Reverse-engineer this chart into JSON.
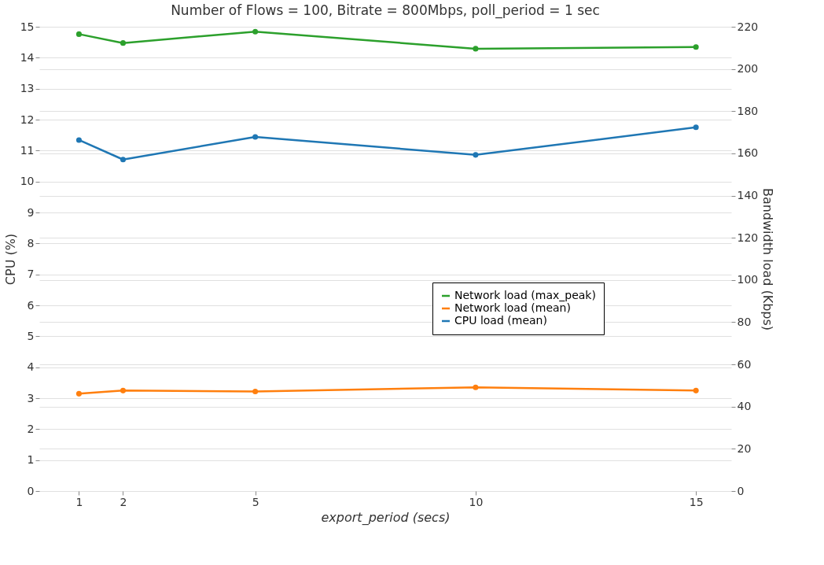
{
  "chart_data": {
    "type": "line",
    "title": "Number of Flows = 100, Bitrate = 800Mbps, poll_period = 1 sec",
    "xlabel": "export_period (secs)",
    "ylabel": "CPU (%)",
    "y2label": "Bandwidth load (Kbps)",
    "x": [
      1,
      2,
      5,
      10,
      15
    ],
    "xlim": [
      0.1,
      15.8
    ],
    "xticks": [
      1,
      2,
      5,
      10,
      15
    ],
    "ylim": [
      0,
      15
    ],
    "yticks": [
      0,
      1,
      2,
      3,
      4,
      5,
      6,
      7,
      8,
      9,
      10,
      11,
      12,
      13,
      14,
      15
    ],
    "y2lim": [
      0,
      220
    ],
    "y2ticks": [
      0,
      20,
      40,
      60,
      80,
      100,
      120,
      140,
      160,
      180,
      200,
      220
    ],
    "grid": "y",
    "legend": "right",
    "marker": "circle",
    "line_style": "solid",
    "series": [
      {
        "name": "Network load (max_peak)",
        "color": "#2ca02c",
        "axis": "y2",
        "values": [
          216.5,
          212.3,
          217.7,
          209.6,
          210.4
        ]
      },
      {
        "name": "Network load (mean)",
        "color": "#ff7f0e",
        "axis": "y2",
        "values": [
          46.1,
          47.6,
          47.2,
          49.1,
          47.6
        ]
      },
      {
        "name": "CPU load (mean)",
        "color": "#1f77b4",
        "axis": "y",
        "values": [
          11.34,
          10.71,
          11.44,
          10.86,
          11.75
        ]
      }
    ]
  }
}
